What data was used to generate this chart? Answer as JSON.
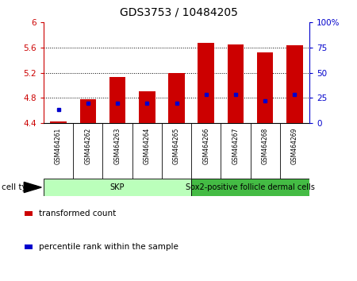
{
  "title": "GDS3753 / 10484205",
  "samples": [
    "GSM464261",
    "GSM464262",
    "GSM464263",
    "GSM464264",
    "GSM464265",
    "GSM464266",
    "GSM464267",
    "GSM464268",
    "GSM464269"
  ],
  "transformed_count": [
    4.43,
    4.78,
    5.13,
    4.9,
    5.2,
    5.67,
    5.65,
    5.52,
    5.63
  ],
  "percentile_rank": [
    13,
    20,
    20,
    20,
    20,
    28,
    28,
    22,
    28
  ],
  "bar_bottom": 4.4,
  "ylim_left": [
    4.4,
    6.0
  ],
  "ylim_right": [
    0,
    100
  ],
  "yticks_left": [
    4.4,
    4.8,
    5.2,
    5.6,
    6.0
  ],
  "ytick_labels_left": [
    "4.4",
    "4.8",
    "5.2",
    "5.6",
    "6"
  ],
  "yticks_right": [
    0,
    25,
    50,
    75,
    100
  ],
  "ytick_labels_right": [
    "0",
    "25",
    "50",
    "75",
    "100%"
  ],
  "left_axis_color": "#cc0000",
  "right_axis_color": "#0000cc",
  "bar_color": "#cc0000",
  "dot_color": "#0000cc",
  "cell_type_groups": [
    {
      "label": "SKP",
      "samples": [
        0,
        1,
        2,
        3,
        4
      ],
      "color": "#bbffbb"
    },
    {
      "label": "Sox2-positive follicle dermal cells",
      "samples": [
        5,
        6,
        7,
        8
      ],
      "color": "#44bb44"
    }
  ],
  "legend_items": [
    {
      "label": "transformed count",
      "color": "#cc0000"
    },
    {
      "label": "percentile rank within the sample",
      "color": "#0000cc"
    }
  ],
  "background_color": "#ffffff",
  "plot_bg_color": "#ffffff",
  "grid_color": "#000000",
  "tick_label_area_color": "#cccccc"
}
